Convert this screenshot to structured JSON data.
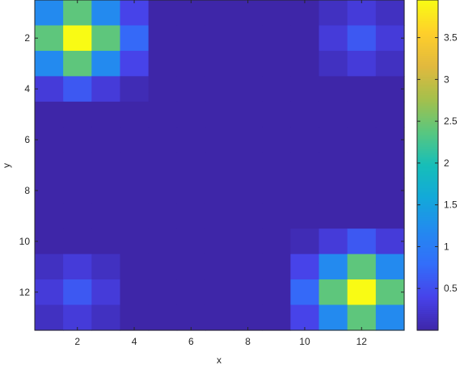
{
  "chart_data": {
    "type": "heatmap",
    "xlabel": "x",
    "ylabel": "y",
    "x_ticks": [
      2,
      4,
      6,
      8,
      10,
      12
    ],
    "y_ticks": [
      2,
      4,
      6,
      8,
      10,
      12
    ],
    "y_axis_direction": "reversed (row 1 at top)",
    "colormap": "parula",
    "color_limits": [
      0,
      3.95
    ],
    "colorbar_ticks": [
      0.5,
      1,
      1.5,
      2,
      2.5,
      3,
      3.5
    ],
    "colorbar_position": "right",
    "values": [
      [
        1.2,
        2.4,
        1.2,
        0.4,
        0,
        0,
        0,
        0,
        0,
        0,
        0.15,
        0.3,
        0.15
      ],
      [
        2.4,
        3.95,
        2.4,
        0.75,
        0,
        0,
        0,
        0,
        0,
        0,
        0.3,
        0.6,
        0.3
      ],
      [
        1.2,
        2.4,
        1.2,
        0.4,
        0,
        0,
        0,
        0,
        0,
        0,
        0.15,
        0.3,
        0.15
      ],
      [
        0.3,
        0.6,
        0.3,
        0.08,
        0,
        0,
        0,
        0,
        0,
        0,
        0,
        0,
        0
      ],
      [
        0,
        0,
        0,
        0,
        0,
        0,
        0,
        0,
        0,
        0,
        0,
        0,
        0
      ],
      [
        0,
        0,
        0,
        0,
        0,
        0,
        0,
        0,
        0,
        0,
        0,
        0,
        0
      ],
      [
        0,
        0,
        0,
        0,
        0,
        0,
        0,
        0,
        0,
        0,
        0,
        0,
        0
      ],
      [
        0,
        0,
        0,
        0,
        0,
        0,
        0,
        0,
        0,
        0,
        0,
        0,
        0
      ],
      [
        0,
        0,
        0,
        0,
        0,
        0,
        0,
        0,
        0,
        0,
        0,
        0,
        0
      ],
      [
        0,
        0,
        0,
        0,
        0,
        0,
        0,
        0,
        0,
        0.08,
        0.3,
        0.6,
        0.3
      ],
      [
        0.15,
        0.3,
        0.15,
        0,
        0,
        0,
        0,
        0,
        0,
        0.4,
        1.2,
        2.4,
        1.2
      ],
      [
        0.3,
        0.6,
        0.3,
        0,
        0,
        0,
        0,
        0,
        0,
        0.75,
        2.4,
        3.95,
        2.4
      ],
      [
        0.15,
        0.3,
        0.15,
        0,
        0,
        0,
        0,
        0,
        0,
        0.4,
        1.2,
        2.4,
        1.2
      ]
    ]
  }
}
